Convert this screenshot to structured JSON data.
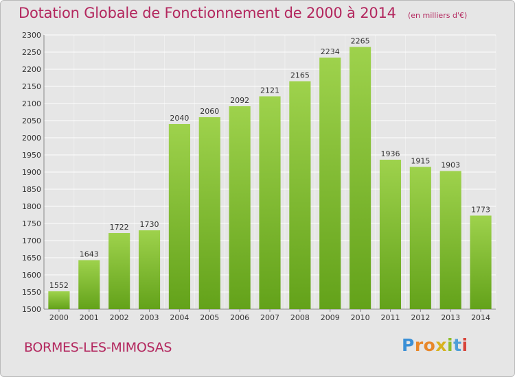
{
  "header": {
    "title": "Dotation Globale de Fonctionnement de 2000 à 2014",
    "unit_note": "(en milliers d'€)"
  },
  "footer": {
    "commune": "BORMES-LES-MIMOSAS"
  },
  "logo": {
    "letters": [
      "P",
      "r",
      "o",
      "x",
      "i",
      "t",
      "i"
    ],
    "colors": [
      "#3a8fd6",
      "#e8872a",
      "#e8872a",
      "#d8b21f",
      "#8fbe2a",
      "#4f9fd8",
      "#d8443a"
    ]
  },
  "colors": {
    "bar_top": "#9ed24c",
    "bar_bottom": "#63a21a",
    "title": "#b3275e",
    "background": "#e6e6e6"
  },
  "chart_data": {
    "type": "bar",
    "categories": [
      "2000",
      "2001",
      "2002",
      "2003",
      "2004",
      "2005",
      "2006",
      "2007",
      "2008",
      "2009",
      "2010",
      "2011",
      "2012",
      "2013",
      "2014"
    ],
    "values": [
      1552,
      1643,
      1722,
      1730,
      2040,
      2060,
      2092,
      2121,
      2165,
      2234,
      2265,
      1936,
      1915,
      1903,
      1773
    ],
    "data_labels": [
      "1552",
      "1643",
      "1722",
      "1730",
      "2040",
      "2060",
      "2092",
      "2121",
      "2165",
      "2234",
      "2265",
      "1936",
      "1915",
      "1903",
      "1773"
    ],
    "yticks": [
      "1500",
      "1550",
      "1600",
      "1650",
      "1700",
      "1750",
      "1800",
      "1850",
      "1900",
      "1950",
      "2000",
      "2050",
      "2100",
      "2150",
      "2200",
      "2250",
      "2300"
    ],
    "ylim": [
      1500,
      2300
    ],
    "grid": true,
    "legend": "none"
  }
}
